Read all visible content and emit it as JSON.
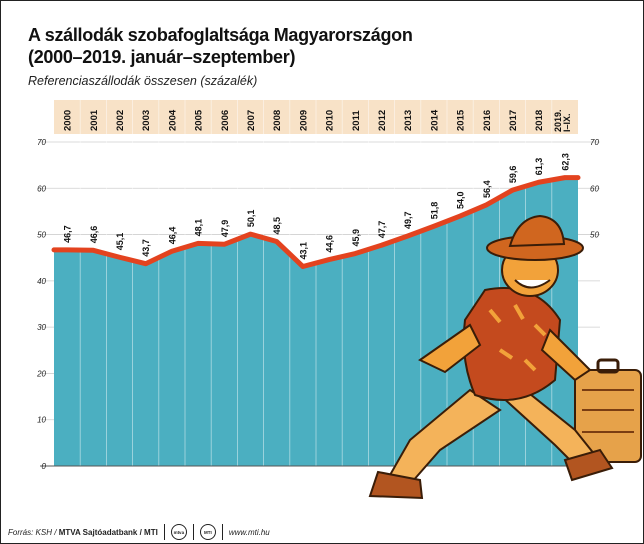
{
  "header": {
    "title_line1": "A szállodák szobafoglaltsága Magyarországon",
    "title_line2": "(2000–2019. január–szeptember)",
    "subtitle": "Referenciaszállodák összesen (százalék)"
  },
  "footer": {
    "source_prefix": "Forrás: KSH / ",
    "source_bold": "MTVA Sajtóadatbank",
    "source_suffix": " / MTI",
    "url": "www.mti.hu",
    "logo1_text": "mtva",
    "logo2_text": "MTI"
  },
  "colors": {
    "area": "#4bafc1",
    "line": "#e3431f",
    "header_band": "#f8e2c7",
    "grid": "#cfcfcf",
    "figure_skin": "#f2a23a",
    "figure_shirt": "#c44a1e"
  },
  "chart_data": {
    "type": "area",
    "categories": [
      "2000",
      "2001",
      "2002",
      "2003",
      "2004",
      "2005",
      "2006",
      "2007",
      "2008",
      "2009",
      "2010",
      "2011",
      "2012",
      "2013",
      "2014",
      "2015",
      "2016",
      "2017",
      "2018",
      "2019. I–IX."
    ],
    "values": [
      46.7,
      46.6,
      45.1,
      43.7,
      46.4,
      48.1,
      47.9,
      50.1,
      48.5,
      43.1,
      44.6,
      45.9,
      47.7,
      49.7,
      51.8,
      54.0,
      56.4,
      59.6,
      61.3,
      62.3
    ],
    "value_labels": [
      "46,7",
      "46,6",
      "45,1",
      "43,7",
      "46,4",
      "48,1",
      "47,9",
      "50,1",
      "48,5",
      "43,1",
      "44,6",
      "45,9",
      "47,7",
      "49,7",
      "51,8",
      "54,0",
      "56,4",
      "59,6",
      "61,3",
      "62,3"
    ],
    "y_ticks_left": [
      0,
      10,
      20,
      30,
      40,
      50,
      60,
      70
    ],
    "y_ticks_right": [
      50,
      60,
      70
    ],
    "ylim": [
      0,
      70
    ],
    "grid": true
  }
}
